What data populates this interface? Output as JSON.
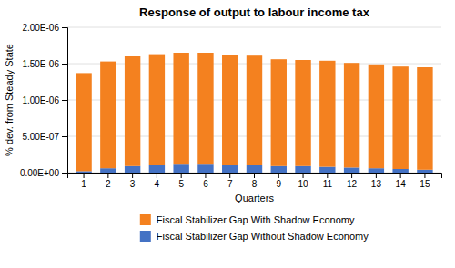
{
  "chart_data": {
    "type": "bar",
    "stacked": true,
    "title": "Response of output to labour income tax",
    "xlabel": "Quarters",
    "ylabel": "% dev. from Steady State",
    "categories": [
      "1",
      "2",
      "3",
      "4",
      "5",
      "6",
      "7",
      "8",
      "9",
      "10",
      "11",
      "12",
      "13",
      "14",
      "15"
    ],
    "series": [
      {
        "name": "Fiscal Stabilizer Gap Without Shadow Economy",
        "color": "#4472C4",
        "values": [
          2e-08,
          6e-08,
          9e-08,
          1e-07,
          1.1e-07,
          1.1e-07,
          1e-07,
          1e-07,
          9e-08,
          9e-08,
          8e-08,
          7e-08,
          6e-08,
          5e-08,
          4e-08
        ]
      },
      {
        "name": "Fiscal Stabilizer Gap With Shadow Economy",
        "color": "#F4811F",
        "values": [
          1.35e-06,
          1.47e-06,
          1.51e-06,
          1.53e-06,
          1.54e-06,
          1.54e-06,
          1.52e-06,
          1.51e-06,
          1.47e-06,
          1.46e-06,
          1.46e-06,
          1.44e-06,
          1.43e-06,
          1.41e-06,
          1.41e-06
        ]
      }
    ],
    "ylim": [
      0,
      2e-06
    ],
    "yticks": [
      {
        "value": 0,
        "label": "0.00E+00"
      },
      {
        "value": 5e-07,
        "label": "5.00E-07"
      },
      {
        "value": 1e-06,
        "label": "1.00E-06"
      },
      {
        "value": 1.5e-06,
        "label": "1.50E-06"
      },
      {
        "value": 2e-06,
        "label": "2.00E-06"
      }
    ],
    "grid": true,
    "legend": "bottom"
  }
}
